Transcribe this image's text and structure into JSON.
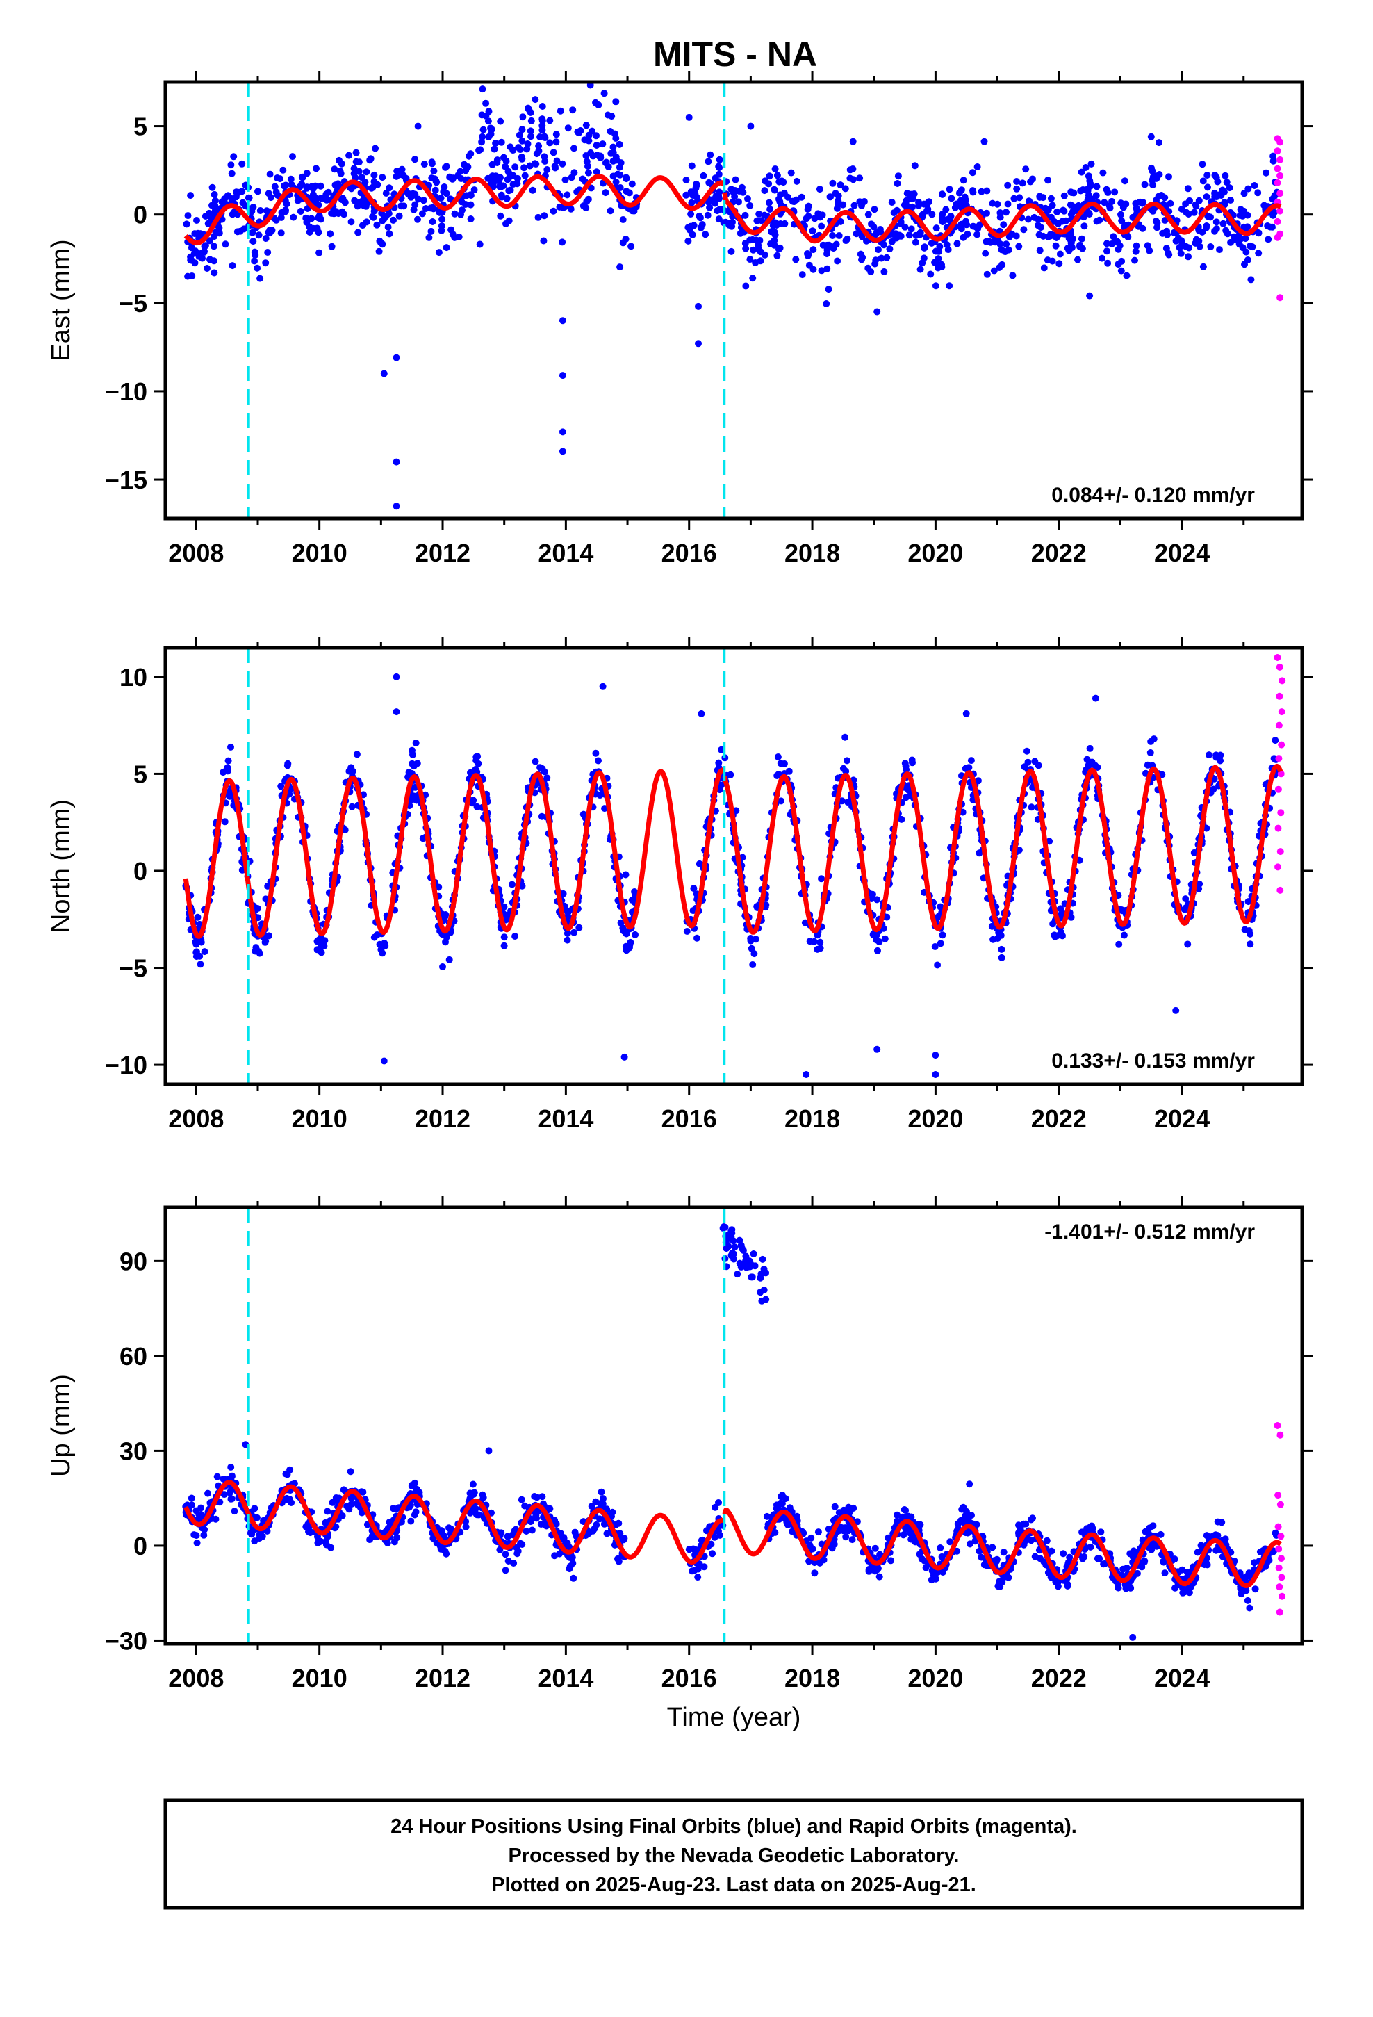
{
  "figure": {
    "title": "MITS - NA",
    "colors": {
      "final_orbits": "#0000ff",
      "rapid_orbits": "#ff00ff",
      "model": "#ff0000",
      "event_lines": "#00e5ee",
      "frame": "#000000"
    },
    "event_years": [
      2008.85,
      2016.57
    ],
    "caption": {
      "lines": [
        "24 Hour Positions Using Final Orbits (blue) and Rapid Orbits (magenta).",
        "Processed by the Nevada Geodetic Laboratory.",
        "Plotted on 2025-Aug-23. Last data on 2025-Aug-21."
      ]
    }
  },
  "chart_data": [
    {
      "type": "scatter",
      "component": "east",
      "ylabel": "East (mm)",
      "xlabel": "",
      "xlim": [
        2007.5,
        2025.95
      ],
      "ylim": [
        -17.2,
        7.5
      ],
      "xticks": [
        "2008",
        "2010",
        "2012",
        "2014",
        "2016",
        "2018",
        "2020",
        "2022",
        "2024"
      ],
      "yticks": [
        "5",
        "0",
        "−5",
        "−10",
        "−15"
      ],
      "ytick_values": [
        5,
        0,
        -5,
        -10,
        -15
      ],
      "rate_label": "0.084+/- 0.120 mm/yr",
      "rate_position": "bottom-right",
      "series": [
        {
          "kind": "final_orbits",
          "data_range": [
            2007.83,
            2025.55
          ],
          "gap": [
            2015.15,
            2015.95
          ],
          "annual_amplitude": 1.0,
          "scatter_sd": 1.2,
          "outliers": [
            [
              2011.05,
              -9.0
            ],
            [
              2011.25,
              -8.1
            ],
            [
              2011.25,
              -14.0
            ],
            [
              2011.25,
              -16.5
            ],
            [
              2013.95,
              -6.0
            ],
            [
              2013.95,
              -9.1
            ],
            [
              2013.95,
              -12.3
            ],
            [
              2013.95,
              -13.4
            ],
            [
              2016.15,
              -5.2
            ],
            [
              2016.15,
              -7.3
            ],
            [
              2016.0,
              5.5
            ],
            [
              2019.05,
              -5.5
            ],
            [
              2017.0,
              5.0
            ],
            [
              2023.5,
              4.4
            ],
            [
              2022.5,
              -4.6
            ]
          ]
        },
        {
          "kind": "rapid_orbits",
          "x_range": [
            2025.55,
            2025.63
          ],
          "y_values": [
            4.3,
            4.1,
            3.6,
            3.1,
            2.6,
            2.2,
            1.8,
            1.2,
            0.7,
            0.2,
            -0.4,
            -1.1,
            -1.3,
            -4.7
          ]
        },
        {
          "kind": "model",
          "knots": [
            [
              2007.83,
              -1.0
            ],
            [
              2008.85,
              0.0
            ],
            [
              2010.0,
              1.0
            ],
            [
              2012.5,
              1.2
            ],
            [
              2014.0,
              1.4
            ],
            [
              2015.5,
              1.3
            ],
            [
              2016.55,
              1.0
            ],
            [
              2016.6,
              0.0
            ],
            [
              2018.0,
              -0.7
            ],
            [
              2020.0,
              -0.6
            ],
            [
              2022.0,
              -0.2
            ],
            [
              2024.0,
              -0.2
            ],
            [
              2025.6,
              -0.3
            ]
          ],
          "annual_amplitude": 0.8
        }
      ]
    },
    {
      "type": "scatter",
      "component": "north",
      "ylabel": "North (mm)",
      "xlabel": "",
      "xlim": [
        2007.5,
        2025.95
      ],
      "ylim": [
        -11.0,
        11.5
      ],
      "xticks": [
        "2008",
        "2010",
        "2012",
        "2014",
        "2016",
        "2018",
        "2020",
        "2022",
        "2024"
      ],
      "yticks": [
        "10",
        "5",
        "0",
        "−5",
        "−10"
      ],
      "ytick_values": [
        10,
        5,
        0,
        -5,
        -10
      ],
      "rate_label": "0.133+/- 0.153 mm/yr",
      "rate_position": "bottom-right",
      "series": [
        {
          "kind": "final_orbits",
          "data_range": [
            2007.83,
            2025.55
          ],
          "gap": [
            2015.15,
            2015.95
          ],
          "annual_amplitude": 4.3,
          "scatter_sd": 1.0,
          "outliers": [
            [
              2011.25,
              10.0
            ],
            [
              2011.25,
              8.2
            ],
            [
              2011.05,
              -9.8
            ],
            [
              2014.95,
              -9.6
            ],
            [
              2016.2,
              8.1
            ],
            [
              2014.6,
              9.5
            ],
            [
              2017.9,
              -10.5
            ],
            [
              2019.05,
              -9.2
            ],
            [
              2020.0,
              -9.5
            ],
            [
              2020.0,
              -10.5
            ],
            [
              2023.9,
              -7.2
            ],
            [
              2020.5,
              8.1
            ],
            [
              2022.6,
              8.9
            ]
          ]
        },
        {
          "kind": "rapid_orbits",
          "x_range": [
            2025.55,
            2025.63
          ],
          "y_values": [
            11.0,
            10.5,
            9.8,
            9.0,
            8.2,
            7.5,
            6.5,
            5.8,
            5.0,
            4.2,
            3.0,
            2.2,
            1.0,
            0.2,
            -1.0
          ]
        },
        {
          "kind": "model",
          "knots": [
            [
              2007.83,
              0.6
            ],
            [
              2016.55,
              1.2
            ],
            [
              2016.6,
              0.8
            ],
            [
              2025.6,
              1.4
            ]
          ],
          "annual_amplitude": 4.0
        }
      ]
    },
    {
      "type": "scatter",
      "component": "up",
      "ylabel": "Up (mm)",
      "xlabel": "Time (year)",
      "xlim": [
        2007.5,
        2025.95
      ],
      "ylim": [
        -31.0,
        107.0
      ],
      "xticks": [
        "2008",
        "2010",
        "2012",
        "2014",
        "2016",
        "2018",
        "2020",
        "2022",
        "2024"
      ],
      "yticks": [
        "90",
        "60",
        "30",
        "0",
        "−30"
      ],
      "ytick_values": [
        90,
        60,
        30,
        0,
        -30
      ],
      "rate_label": "-1.401+/- 0.512 mm/yr",
      "rate_position": "top-right",
      "series": [
        {
          "kind": "final_orbits",
          "data_range": [
            2007.83,
            2025.55
          ],
          "gap": [
            2014.95,
            2016.0
          ],
          "offset_segment": {
            "x_range": [
              2016.55,
              2017.25
            ],
            "y_start": 98,
            "y_end": 83,
            "sd": 5
          },
          "annual_amplitude": 7.0,
          "scatter_sd": 3.8,
          "outliers": [
            [
              2008.8,
              32.0
            ],
            [
              2012.75,
              30.0
            ],
            [
              2020.55,
              19.5
            ],
            [
              2023.2,
              -29.0
            ]
          ]
        },
        {
          "kind": "rapid_orbits",
          "x_range": [
            2025.55,
            2025.63
          ],
          "y_values": [
            38.0,
            35.0,
            16.0,
            13.0,
            6.0,
            3.0,
            -1.0,
            -4.0,
            -7.0,
            -10.0,
            -13.0,
            -16.0,
            -21.0
          ]
        },
        {
          "kind": "model",
          "knots": [
            [
              2007.83,
              14.0
            ],
            [
              2010.0,
              11.0
            ],
            [
              2012.0,
              8.0
            ],
            [
              2014.0,
              5.0
            ],
            [
              2015.3,
              3.0
            ],
            [
              2016.55,
              1.0
            ],
            [
              2016.6,
              5.0
            ],
            [
              2018.0,
              3.0
            ],
            [
              2020.0,
              0.0
            ],
            [
              2022.0,
              -3.0
            ],
            [
              2024.0,
              -5.0
            ],
            [
              2025.6,
              -6.0
            ]
          ],
          "annual_amplitude": 7.0
        }
      ]
    }
  ]
}
